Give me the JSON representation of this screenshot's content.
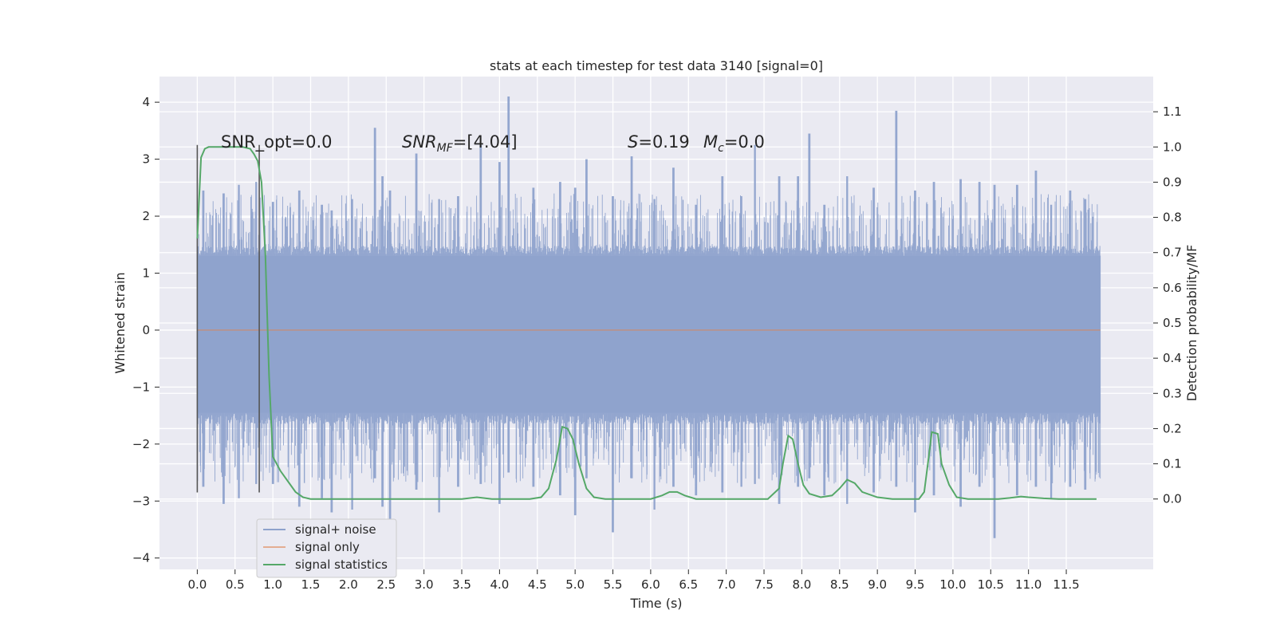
{
  "chart_data": {
    "type": "line",
    "title": "stats at each timestep for test data 3140 [signal=0]",
    "xlabel": "Time (s)",
    "ylabel": "Whitened strain",
    "y2label": "Detection probability/MF",
    "xlim": [
      -0.5,
      12.65
    ],
    "ylim": [
      -4.2,
      4.45
    ],
    "y2lim": [
      -0.2,
      1.2
    ],
    "xticks": [
      0.0,
      0.5,
      1.0,
      1.5,
      2.0,
      2.5,
      3.0,
      3.5,
      4.0,
      4.5,
      5.0,
      5.5,
      6.0,
      6.5,
      7.0,
      7.5,
      8.0,
      8.5,
      9.0,
      9.5,
      10.0,
      10.5,
      11.0,
      11.5
    ],
    "xtick_labels": [
      "0.0",
      "0.5",
      "1.0",
      "1.5",
      "2.0",
      "2.5",
      "3.0",
      "3.5",
      "4.0",
      "4.5",
      "5.0",
      "5.5",
      "6.0",
      "6.5",
      "7.0",
      "7.5",
      "8.0",
      "8.5",
      "9.0",
      "9.5",
      "10.0",
      "10.5",
      "11.0",
      "11.5"
    ],
    "yticks": [
      -4,
      -3,
      -2,
      -1,
      0,
      1,
      2,
      3,
      4
    ],
    "ytick_labels": [
      "−4",
      "−3",
      "−2",
      "−1",
      "0",
      "1",
      "2",
      "3",
      "4"
    ],
    "y2ticks": [
      0.0,
      0.1,
      0.2,
      0.3,
      0.4,
      0.5,
      0.6,
      0.7,
      0.8,
      0.9,
      1.0,
      1.1
    ],
    "y2tick_labels": [
      "0.0",
      "0.1",
      "0.2",
      "0.3",
      "0.4",
      "0.5",
      "0.6",
      "0.7",
      "0.8",
      "0.9",
      "1.0",
      "1.1"
    ],
    "grid": true,
    "legend_position": "lower-left",
    "annotations": {
      "snr_opt": "SNR_opt=0.0",
      "snr_mf_base": "SNR",
      "snr_mf_sub": "MF",
      "snr_mf_value": "=[4.04]",
      "s_symbol": "S",
      "s_value": "=0.19",
      "mc_base": "M",
      "mc_sub": "c",
      "mc_value": "=0.0"
    },
    "vlines": [
      {
        "x": 0.0,
        "ymin": -2.85,
        "ymax": 3.25
      },
      {
        "x": 0.82,
        "ymin": -2.85,
        "ymax": 3.25
      }
    ],
    "series": [
      {
        "name": "signal+ noise",
        "color": "#8ea2cc",
        "x_range": [
          0.0,
          11.95
        ],
        "envelope_peaks": [
          [
            0.08,
            2.45,
            -2.75
          ],
          [
            0.35,
            2.4,
            -3.05
          ],
          [
            0.55,
            2.55,
            -2.95
          ],
          [
            0.78,
            2.6,
            -2.7
          ],
          [
            1.0,
            2.25,
            -2.7
          ],
          [
            1.35,
            2.45,
            -3.1
          ],
          [
            1.65,
            2.2,
            -2.95
          ],
          [
            1.78,
            2.1,
            -3.2
          ],
          [
            2.05,
            2.3,
            -3.15
          ],
          [
            2.35,
            3.55,
            -2.6
          ],
          [
            2.45,
            2.7,
            -3.1
          ],
          [
            2.55,
            2.45,
            -3.4
          ],
          [
            2.9,
            3.1,
            -2.8
          ],
          [
            3.2,
            2.3,
            -3.2
          ],
          [
            3.45,
            2.35,
            -2.75
          ],
          [
            3.75,
            3.25,
            -2.7
          ],
          [
            4.0,
            2.95,
            -3.05
          ],
          [
            4.12,
            4.1,
            -2.5
          ],
          [
            4.45,
            2.5,
            -2.75
          ],
          [
            4.8,
            2.6,
            -2.9
          ],
          [
            5.0,
            2.5,
            -3.25
          ],
          [
            5.15,
            3.0,
            -2.6
          ],
          [
            5.5,
            2.35,
            -3.55
          ],
          [
            5.75,
            3.05,
            -2.6
          ],
          [
            6.05,
            2.3,
            -3.15
          ],
          [
            6.3,
            2.85,
            -2.75
          ],
          [
            6.6,
            2.2,
            -2.9
          ],
          [
            6.95,
            2.7,
            -2.85
          ],
          [
            7.2,
            2.35,
            -2.75
          ],
          [
            7.38,
            3.25,
            -2.7
          ],
          [
            7.7,
            2.7,
            -3.05
          ],
          [
            7.95,
            2.7,
            -2.75
          ],
          [
            8.1,
            3.45,
            -2.6
          ],
          [
            8.3,
            2.2,
            -2.9
          ],
          [
            8.6,
            2.7,
            -3.05
          ],
          [
            8.95,
            2.5,
            -2.85
          ],
          [
            9.25,
            3.85,
            -2.75
          ],
          [
            9.5,
            2.45,
            -3.2
          ],
          [
            9.75,
            2.6,
            -2.9
          ],
          [
            10.1,
            2.65,
            -3.1
          ],
          [
            10.35,
            2.6,
            -2.75
          ],
          [
            10.55,
            2.55,
            -3.65
          ],
          [
            10.85,
            2.55,
            -2.9
          ],
          [
            11.1,
            2.8,
            -2.75
          ],
          [
            11.3,
            2.2,
            -2.95
          ],
          [
            11.55,
            2.45,
            -2.75
          ],
          [
            11.75,
            2.3,
            -2.8
          ]
        ]
      },
      {
        "name": "signal only",
        "color": "#dd8452",
        "x": [
          0.0,
          11.95
        ],
        "y": [
          0.0,
          0.0
        ]
      },
      {
        "name": "signal statistics",
        "color": "#55a868",
        "axis": "right",
        "x": [
          0.0,
          0.05,
          0.1,
          0.15,
          0.2,
          0.3,
          0.4,
          0.5,
          0.6,
          0.7,
          0.75,
          0.8,
          0.85,
          0.9,
          0.95,
          1.0,
          1.05,
          1.1,
          1.2,
          1.3,
          1.4,
          1.5,
          1.6,
          1.8,
          2.0,
          2.5,
          3.0,
          3.3,
          3.5,
          3.7,
          3.9,
          4.2,
          4.4,
          4.55,
          4.65,
          4.75,
          4.83,
          4.9,
          4.97,
          5.05,
          5.15,
          5.25,
          5.4,
          5.6,
          5.8,
          6.0,
          6.15,
          6.25,
          6.35,
          6.45,
          6.6,
          6.8,
          7.0,
          7.2,
          7.4,
          7.55,
          7.7,
          7.75,
          7.82,
          7.88,
          7.95,
          8.02,
          8.1,
          8.25,
          8.4,
          8.5,
          8.6,
          8.7,
          8.8,
          9.0,
          9.2,
          9.4,
          9.55,
          9.62,
          9.68,
          9.72,
          9.8,
          9.85,
          9.95,
          10.05,
          10.2,
          10.4,
          10.6,
          10.75,
          10.9,
          11.0,
          11.2,
          11.4,
          11.6,
          11.8,
          11.9
        ],
        "y": [
          0.74,
          0.97,
          0.995,
          1.0,
          1.0,
          1.0,
          1.0,
          1.0,
          1.0,
          0.995,
          0.98,
          0.96,
          0.9,
          0.7,
          0.35,
          0.12,
          0.1,
          0.08,
          0.05,
          0.02,
          0.005,
          0.0,
          0.0,
          0.0,
          0.0,
          0.0,
          0.0,
          0.0,
          0.0,
          0.005,
          0.0,
          0.0,
          0.0,
          0.005,
          0.03,
          0.11,
          0.205,
          0.2,
          0.17,
          0.1,
          0.03,
          0.005,
          0.0,
          0.0,
          0.0,
          0.0,
          0.01,
          0.02,
          0.02,
          0.01,
          0.0,
          0.0,
          0.0,
          0.0,
          0.0,
          0.0,
          0.03,
          0.1,
          0.18,
          0.17,
          0.1,
          0.04,
          0.015,
          0.005,
          0.01,
          0.03,
          0.055,
          0.045,
          0.02,
          0.005,
          0.0,
          0.0,
          0.0,
          0.02,
          0.12,
          0.19,
          0.185,
          0.1,
          0.04,
          0.005,
          0.0,
          0.0,
          0.0,
          0.003,
          0.007,
          0.005,
          0.002,
          0.0,
          0.0,
          0.0,
          0.0
        ]
      }
    ]
  }
}
